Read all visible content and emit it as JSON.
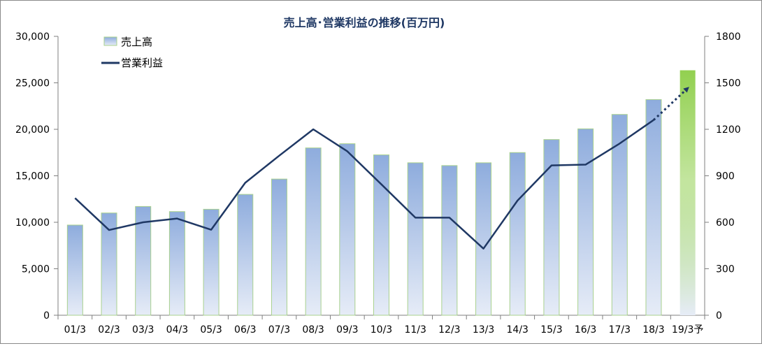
{
  "chart_data": {
    "type": "bar+line",
    "title": "売上高･営業利益の推移(百万円)",
    "categories": [
      "01/3",
      "02/3",
      "03/3",
      "04/3",
      "05/3",
      "06/3",
      "07/3",
      "08/3",
      "09/3",
      "10/3",
      "11/3",
      "12/3",
      "13/3",
      "14/3",
      "15/3",
      "16/3",
      "17/3",
      "18/3",
      "19/3予"
    ],
    "series": [
      {
        "name": "売上高",
        "type": "bar",
        "axis": "left",
        "values": [
          9700,
          11000,
          11700,
          11150,
          11400,
          13000,
          14650,
          18000,
          18450,
          17250,
          16400,
          16100,
          16400,
          17500,
          18900,
          20050,
          21600,
          23200,
          26350
        ],
        "last_is_forecast": true
      },
      {
        "name": "営業利益",
        "type": "line",
        "axis": "right",
        "values": [
          756,
          550,
          600,
          624,
          552,
          855,
          1030,
          1200,
          1058,
          845,
          630,
          630,
          430,
          740,
          967,
          972,
          1108,
          1260,
          1465
        ],
        "last_segment_dashed": true
      }
    ],
    "y_left": {
      "min": 0,
      "max": 30000,
      "ticks": [
        "0",
        "5,000",
        "10,000",
        "15,000",
        "20,000",
        "25,000",
        "30,000"
      ]
    },
    "y_right": {
      "min": 0,
      "max": 1800,
      "ticks": [
        "0",
        "300",
        "600",
        "900",
        "1200",
        "1500",
        "1800"
      ]
    },
    "legend_placement": "top-left",
    "colors": {
      "bar_top": "#8eacdd",
      "bar_bottom": "#e6ecf7",
      "bar_border": "#a9d18e",
      "forecast_top": "#92d050",
      "forecast_bottom": "#e6ecf7",
      "line": "#1f3864",
      "title": "#1f3864",
      "axis": "#7f7f7f"
    }
  }
}
